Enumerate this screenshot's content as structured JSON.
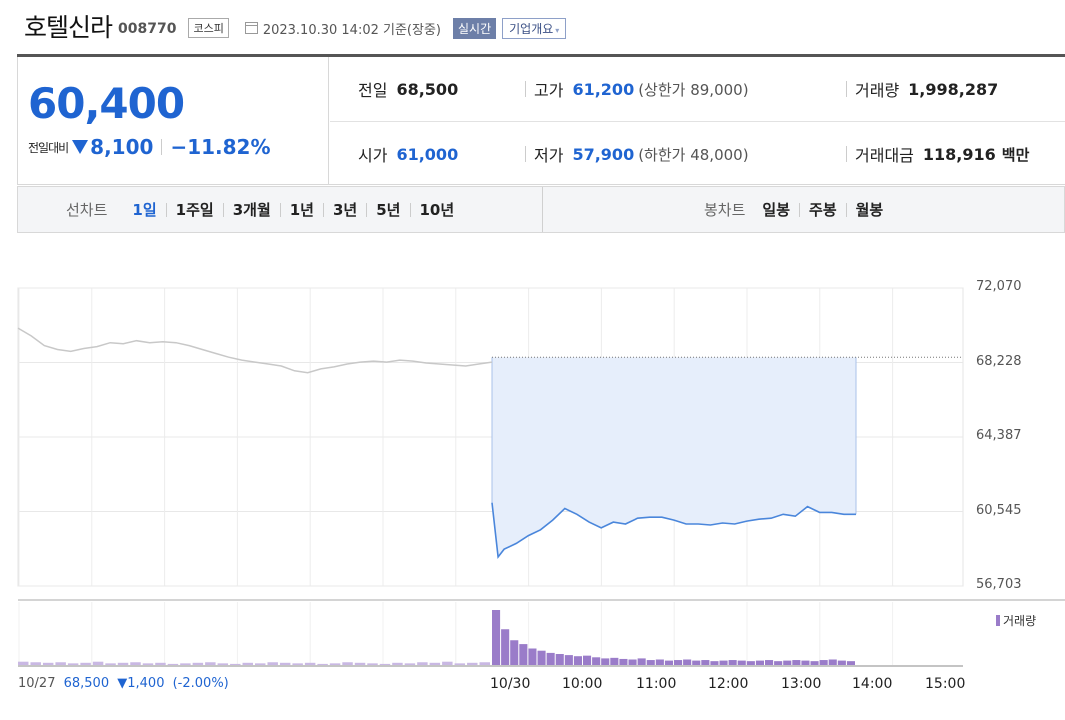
{
  "header": {
    "stock_name": "호텔신라",
    "stock_code": "008770",
    "market": "코스피",
    "date_label": "2023.10.30 14:02 기준(장중)",
    "realtime_label": "실시간",
    "company_info_label": "기업개요",
    "dropdown_caret": "▾"
  },
  "summary": {
    "price": "60,400",
    "change_label": "전일대비",
    "change_amount": "8,100",
    "change_percent": "−11.82%",
    "stats": {
      "prev_close_label": "전일",
      "prev_close": "68,500",
      "high_label": "고가",
      "high": "61,200",
      "upper_limit": "(상한가 89,000)",
      "volume_label": "거래량",
      "volume": "1,998,287",
      "open_label": "시가",
      "open": "61,000",
      "low_label": "저가",
      "low": "57,900",
      "lower_limit": "(하한가 48,000)",
      "value_label": "거래대금",
      "value": "118,916",
      "value_unit": "백만"
    }
  },
  "tabs": {
    "line_chart_label": "선차트",
    "periods": [
      "1일",
      "1주일",
      "3개월",
      "1년",
      "3년",
      "5년",
      "10년"
    ],
    "active_period": "1일",
    "candle_label": "봉차트",
    "candles": [
      "일봉",
      "주봉",
      "월봉"
    ]
  },
  "colors": {
    "accent_blue": "#1f64d1",
    "line_today": "#4a86db",
    "line_prev": "#c8c8c8",
    "area_fill": "#e6eefb",
    "volume": "#9a7cc9"
  },
  "chart_data": {
    "type": "line",
    "y_ticks": [
      "72,070",
      "68,228",
      "64,387",
      "60,545",
      "56,703"
    ],
    "ylim": [
      56703,
      72070
    ],
    "x_ticks": [
      "10/30",
      "10:00",
      "11:00",
      "12:00",
      "13:00",
      "14:00",
      "15:00"
    ],
    "prev_close": 68500,
    "prev_day": {
      "label": "10/27",
      "close": "68,500",
      "change": "▼1,400",
      "change_pct": "(-2.00%)",
      "values": [
        70000,
        69600,
        69100,
        68900,
        68800,
        68950,
        69050,
        69250,
        69200,
        69350,
        69250,
        69300,
        69250,
        69100,
        68900,
        68700,
        68500,
        68350,
        68250,
        68150,
        68050,
        67800,
        67700,
        67900,
        68000,
        68150,
        68250,
        68300,
        68250,
        68350,
        68300,
        68200,
        68150,
        68100,
        68050,
        68150,
        68250
      ]
    },
    "today": {
      "label": "10/30",
      "times": [
        "09:00",
        "09:05",
        "09:10",
        "09:20",
        "09:30",
        "09:40",
        "09:50",
        "10:00",
        "10:10",
        "10:20",
        "10:30",
        "10:40",
        "10:50",
        "11:00",
        "11:10",
        "11:20",
        "11:30",
        "11:40",
        "11:50",
        "12:00",
        "12:10",
        "12:20",
        "12:30",
        "12:40",
        "12:50",
        "13:00",
        "13:10",
        "13:20",
        "13:30",
        "13:40",
        "13:50",
        "14:00"
      ],
      "values": [
        61000,
        58200,
        58600,
        58900,
        59300,
        59600,
        60100,
        60700,
        60400,
        60000,
        59700,
        60000,
        59900,
        60200,
        60250,
        60250,
        60100,
        59900,
        59900,
        59850,
        59950,
        59900,
        60050,
        60150,
        60200,
        60400,
        60300,
        60800,
        60500,
        60500,
        60400,
        60400
      ]
    },
    "volume_label": "거래량",
    "volume_today": [
      100,
      65,
      45,
      38,
      30,
      26,
      22,
      20,
      18,
      16,
      17,
      14,
      12,
      13,
      11,
      10,
      12,
      9,
      10,
      8,
      9,
      10,
      8,
      9,
      7,
      8,
      9,
      8,
      7,
      8,
      9,
      7,
      8,
      9,
      8,
      7,
      9,
      10,
      8,
      7
    ],
    "volume_prev": [
      6,
      5,
      4,
      5,
      3,
      4,
      6,
      3,
      4,
      5,
      3,
      4,
      2,
      3,
      4,
      5,
      3,
      2,
      4,
      3,
      5,
      4,
      3,
      4,
      2,
      3,
      5,
      4,
      3,
      2,
      4,
      3,
      5,
      4,
      6,
      3,
      4,
      5
    ]
  }
}
